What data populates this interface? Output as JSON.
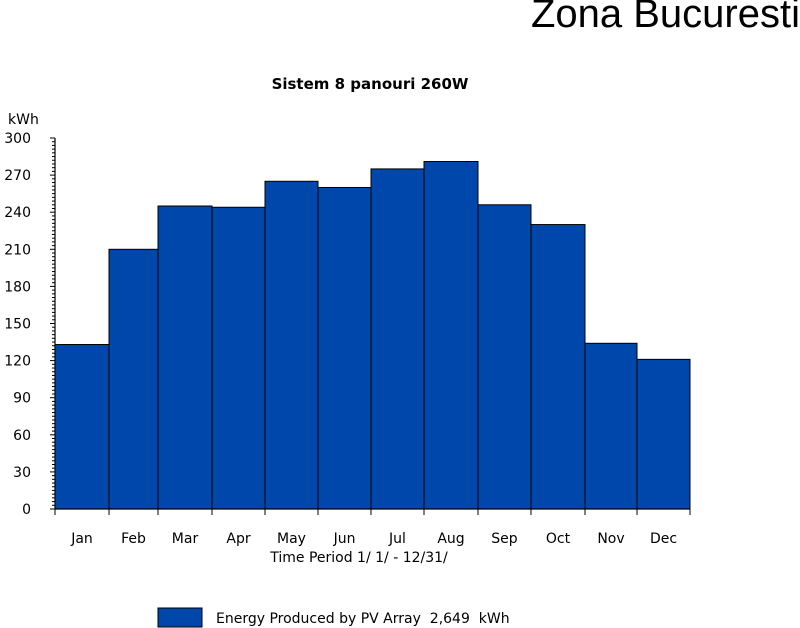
{
  "page_title": "Zona Bucuresti",
  "chart_data": {
    "type": "bar",
    "title": "Sistem 8 panouri 260W",
    "ylabel": "kWh",
    "xlabel": "Time Period 1/ 1/ - 12/31/",
    "categories": [
      "Jan",
      "Feb",
      "Mar",
      "Apr",
      "May",
      "Jun",
      "Jul",
      "Aug",
      "Sep",
      "Oct",
      "Nov",
      "Dec"
    ],
    "series": [
      {
        "name": "Energy Produced by PV Array  2,649  kWh",
        "values": [
          133,
          210,
          245,
          244,
          265,
          260,
          275,
          281,
          246,
          230,
          134,
          121
        ]
      }
    ],
    "ylim": [
      0,
      300
    ],
    "yticks": [
      0,
      30,
      60,
      90,
      120,
      150,
      180,
      210,
      240,
      270,
      300
    ],
    "grid": false,
    "legend_position": "bottom-left",
    "colors": {
      "bar": "#0047ab",
      "edge": "#000000"
    }
  }
}
